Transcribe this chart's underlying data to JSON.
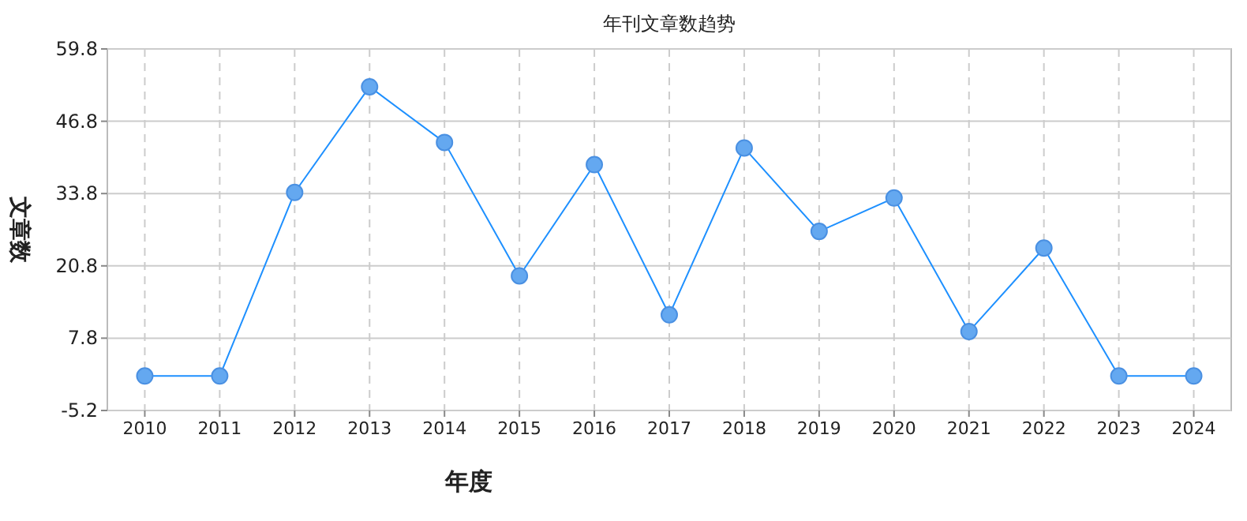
{
  "chart_data": {
    "type": "line",
    "title": "年刊文章数趋势",
    "xlabel": "年度",
    "ylabel": "文章数",
    "categories": [
      "2010",
      "2011",
      "2012",
      "2013",
      "2014",
      "2015",
      "2016",
      "2017",
      "2018",
      "2019",
      "2020",
      "2021",
      "2022",
      "2023",
      "2024"
    ],
    "series": [
      {
        "color": "#1e90ff",
        "values": [
          1,
          1,
          34,
          53,
          43,
          19,
          39,
          12,
          42,
          27,
          33,
          9,
          24,
          1,
          1
        ]
      }
    ],
    "ylim": [
      -5.2,
      59.8
    ],
    "yticks": [
      -5.2,
      7.8,
      20.8,
      33.8,
      46.8,
      59.8
    ],
    "grid": true,
    "marker": "circle",
    "line_style": "solid"
  }
}
